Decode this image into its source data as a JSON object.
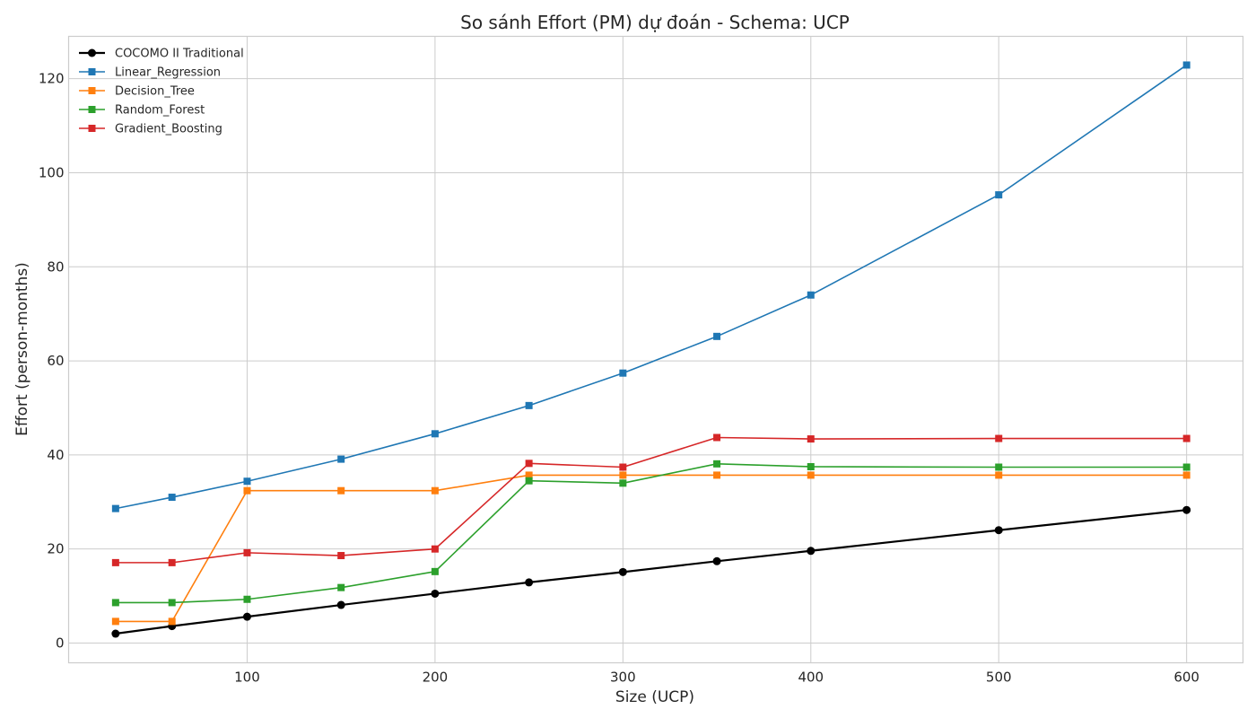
{
  "chart_data": {
    "type": "line",
    "title": "So sánh Effort (PM) dự đoán - Schema: UCP",
    "xlabel": "Size (UCP)",
    "ylabel": "Effort (person-months)",
    "xlim": [
      5,
      630
    ],
    "ylim": [
      -4.2,
      129
    ],
    "xticks": [
      100,
      200,
      300,
      400,
      500,
      600
    ],
    "yticks": [
      0,
      20,
      40,
      60,
      80,
      100,
      120
    ],
    "grid": true,
    "legend_position": "top-left",
    "x": [
      30,
      60,
      100,
      150,
      200,
      250,
      300,
      350,
      400,
      500,
      600
    ],
    "series": [
      {
        "name": "COCOMO II Traditional",
        "color": "#000000",
        "marker": "circle",
        "values": [
          2.0,
          3.6,
          5.6,
          8.1,
          10.5,
          12.9,
          15.1,
          17.4,
          19.6,
          24.0,
          28.3
        ]
      },
      {
        "name": "Linear_Regression",
        "color": "#1f77b4",
        "marker": "square",
        "values": [
          28.6,
          31.0,
          34.4,
          39.1,
          44.5,
          50.5,
          57.4,
          65.2,
          74.0,
          95.3,
          122.9
        ]
      },
      {
        "name": "Decision_Tree",
        "color": "#ff7f0e",
        "marker": "square",
        "values": [
          4.6,
          4.6,
          32.4,
          32.4,
          32.4,
          35.7,
          35.7,
          35.7,
          35.7,
          35.7,
          35.7
        ]
      },
      {
        "name": "Random_Forest",
        "color": "#2ca02c",
        "marker": "square",
        "values": [
          8.6,
          8.6,
          9.3,
          11.8,
          15.2,
          34.5,
          34.0,
          38.1,
          37.5,
          37.4,
          37.4
        ]
      },
      {
        "name": "Gradient_Boosting",
        "color": "#d62728",
        "marker": "square",
        "values": [
          17.1,
          17.1,
          19.2,
          18.6,
          20.0,
          38.2,
          37.4,
          43.7,
          43.4,
          43.5,
          43.5
        ]
      }
    ]
  }
}
